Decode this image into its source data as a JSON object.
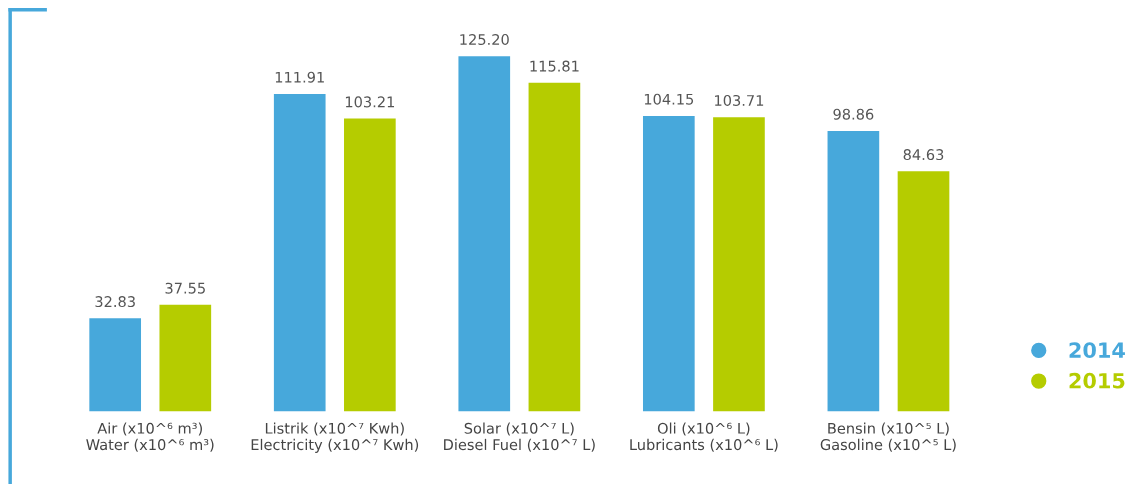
{
  "chart_data": {
    "type": "bar",
    "categories": [
      "Air (x10^⁶ m³)\nWater (x10^⁶ m³)",
      "Listrik (x10^⁷ Kwh)\nElectricity (x10^⁷ Kwh)",
      "Solar (x10^⁷ L)\nDiesel Fuel (x10^⁷ L)",
      "Oli (x10^⁶ L)\nLubricants (x10^⁶ L)",
      "Bensin (x10^⁵ L)\nGasoline (x10^⁵ L)"
    ],
    "series": [
      {
        "name": "2014",
        "color": "#47a8db",
        "values": [
          32.83,
          111.91,
          125.2,
          104.15,
          98.86
        ],
        "value_labels": [
          "32.83",
          "111.91",
          "125.20",
          "104.15",
          "98.86"
        ]
      },
      {
        "name": "2015",
        "color": "#b5cc00",
        "values": [
          37.55,
          103.21,
          115.81,
          103.71,
          84.63
        ],
        "value_labels": [
          "37.55",
          "103.21",
          "115.81",
          "103.71",
          "84.63"
        ]
      }
    ],
    "legend": "bottom right",
    "grid": false
  }
}
